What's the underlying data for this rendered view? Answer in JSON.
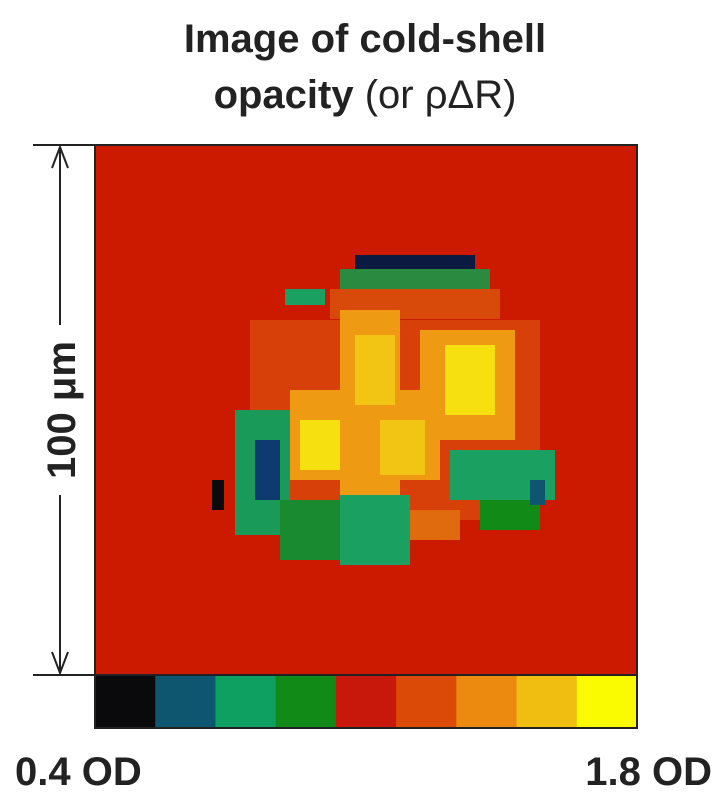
{
  "title": [
    "Image of cold-shell",
    "opacity",
    "(or ρΔR)"
  ],
  "scale_label": "100 μm",
  "colorbar": {
    "min_label": "0.4 OD",
    "max_label": "1.8 OD",
    "colors": [
      "#0a0a0c",
      "#0e5670",
      "#0ea060",
      "#128a18",
      "#c8180c",
      "#dc4a08",
      "#ec8a10",
      "#f0be10",
      "#fafa00"
    ]
  }
}
